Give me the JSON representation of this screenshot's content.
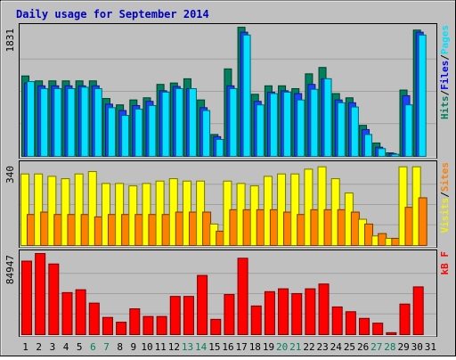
{
  "chart_data": {
    "title": "Daily usage for September 2014",
    "type": "bar",
    "categories": [
      "1",
      "2",
      "3",
      "4",
      "5",
      "6",
      "7",
      "8",
      "9",
      "10",
      "11",
      "12",
      "13",
      "14",
      "15",
      "16",
      "17",
      "18",
      "19",
      "20",
      "21",
      "22",
      "23",
      "24",
      "25",
      "26",
      "27",
      "28",
      "29",
      "30",
      "31"
    ],
    "weekend_days": [
      "6",
      "7",
      "13",
      "14",
      "20",
      "21",
      "27",
      "28"
    ],
    "panels": [
      {
        "id": "hits-files-pages",
        "ymax_label": "1831",
        "ymax": 1831,
        "right_labels": [
          {
            "text": "Hits",
            "color": "#00805c"
          },
          {
            "text": "/",
            "color": "#000000"
          },
          {
            "text": "Files",
            "color": "#0000ff"
          },
          {
            "text": "/",
            "color": "#000000"
          },
          {
            "text": "Pages",
            "color": "#00e0ff"
          }
        ],
        "series": [
          {
            "name": "Hits",
            "color": "#00805c",
            "values": [
              1140,
              1070,
              1070,
              1070,
              1070,
              1070,
              820,
              730,
              800,
              830,
              1020,
              1040,
              1100,
              800,
              310,
              1240,
              1830,
              880,
              1000,
              1000,
              960,
              1170,
              1260,
              890,
              830,
              440,
              190,
              50,
              940,
              1790,
              0
            ]
          },
          {
            "name": "Files",
            "color": "#2040ff",
            "values": [
              1040,
              1000,
              1000,
              1000,
              1000,
              1000,
              740,
              650,
              720,
              780,
              930,
              990,
              960,
              690,
              280,
              1000,
              1760,
              780,
              910,
              930,
              890,
              1020,
              1100,
              800,
              760,
              380,
              130,
              40,
              860,
              1760,
              0
            ]
          },
          {
            "name": "Pages",
            "color": "#00e0ff",
            "values": [
              1060,
              960,
              960,
              960,
              980,
              960,
              690,
              580,
              670,
              720,
              910,
              960,
              960,
              650,
              240,
              960,
              1720,
              730,
              890,
              910,
              800,
              950,
              1100,
              760,
              700,
              310,
              110,
              30,
              730,
              1720,
              0
            ]
          }
        ]
      },
      {
        "id": "visits-sites",
        "ymax_label": "340",
        "ymax": 340,
        "right_labels": [
          {
            "text": "Visits",
            "color": "#f0f000"
          },
          {
            "text": "/",
            "color": "#000000"
          },
          {
            "text": "Sites",
            "color": "#ff8000"
          }
        ],
        "series": [
          {
            "name": "Visits",
            "color": "#ffff00",
            "values": [
              300,
              300,
              290,
              280,
              300,
              310,
              260,
              260,
              250,
              260,
              270,
              280,
              270,
              270,
              90,
              270,
              260,
              250,
              290,
              300,
              300,
              320,
              330,
              280,
              220,
              110,
              40,
              30,
              330,
              330,
              0
            ]
          },
          {
            "name": "Sites",
            "color": "#ff8000",
            "values": [
              130,
              140,
              130,
              130,
              130,
              120,
              130,
              130,
              130,
              130,
              130,
              140,
              140,
              140,
              60,
              150,
              150,
              150,
              150,
              140,
              130,
              150,
              150,
              150,
              140,
              90,
              50,
              30,
              160,
              200,
              0
            ]
          }
        ]
      },
      {
        "id": "kbytes",
        "ymax_label": "84947",
        "ymax": 84947,
        "right_labels": [
          {
            "text": "kB F",
            "color": "#ff0000"
          }
        ],
        "series": [
          {
            "name": "kB F",
            "color": "#ff0000",
            "values": [
              77000,
              84947,
              74000,
              44000,
              47000,
              33000,
              18000,
              13000,
              27000,
              19000,
              19000,
              40000,
              40000,
              62000,
              16000,
              42000,
              80000,
              30000,
              45000,
              48000,
              43000,
              48000,
              53000,
              29000,
              24000,
              17000,
              12000,
              2000,
              32000,
              50000,
              0
            ]
          }
        ]
      }
    ]
  }
}
